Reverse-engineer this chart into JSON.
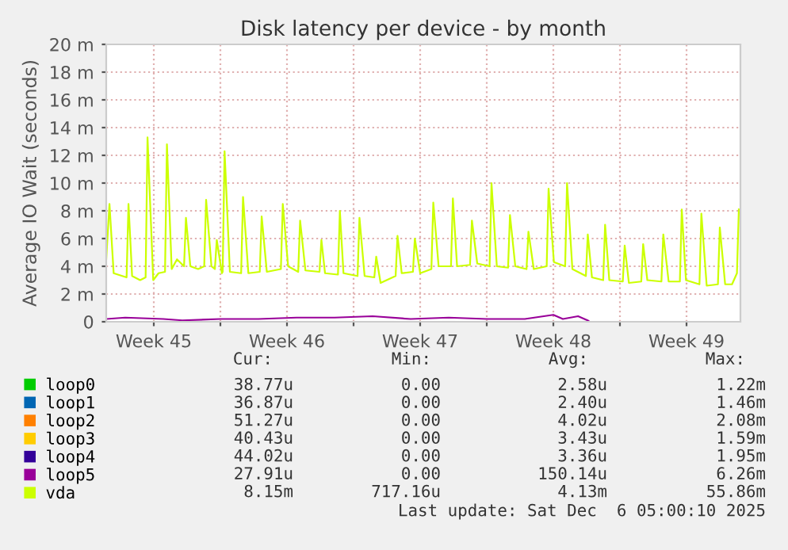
{
  "chart_data": {
    "type": "line",
    "title": "Disk latency per device - by month",
    "ylabel": "Average IO Wait (seconds)",
    "xlim": [
      "2025-11-04T00:00",
      "2025-12-07T08:00"
    ],
    "ylim": [
      0,
      20
    ],
    "xticks": [
      {
        "value": "2025-11-06T12:00",
        "label": "Week 45"
      },
      {
        "value": "2025-11-10T00:00",
        "label": null
      },
      {
        "value": "2025-11-13T12:00",
        "label": "Week 46"
      },
      {
        "value": "2025-11-17T00:00",
        "label": null
      },
      {
        "value": "2025-11-20T12:00",
        "label": "Week 47"
      },
      {
        "value": "2025-11-24T00:00",
        "label": null
      },
      {
        "value": "2025-11-27T12:00",
        "label": "Week 48"
      },
      {
        "value": "2025-12-01T00:00",
        "label": null
      },
      {
        "value": "2025-12-04T12:00",
        "label": "Week 49"
      }
    ],
    "yticks": [
      0,
      {
        "value": 2,
        "label": "2 m"
      },
      {
        "value": 4,
        "label": "4 m"
      },
      {
        "value": 6,
        "label": "6 m"
      },
      {
        "value": 8,
        "label": "8 m"
      },
      {
        "value": 10,
        "label": "10 m"
      },
      {
        "value": 12,
        "label": "12 m"
      },
      {
        "value": 14,
        "label": "14 m"
      },
      {
        "value": 16,
        "label": "16 m"
      },
      {
        "value": 18,
        "label": "18 m"
      },
      {
        "value": 20,
        "label": "20 m"
      }
    ],
    "grid": true,
    "legend": "bottom left",
    "series": [
      {
        "name": "loop0",
        "color": "#00cc00"
      },
      {
        "name": "loop1",
        "color": "#0066b3"
      },
      {
        "name": "loop2",
        "color": "#ff8000"
      },
      {
        "name": "loop3",
        "color": "#ffcc00"
      },
      {
        "name": "loop4",
        "color": "#330099"
      },
      {
        "name": "loop5",
        "color": "#990099",
        "x": [
          "2025-11-04T00:00",
          "2025-11-05T00:00",
          "2025-11-07T00:00",
          "2025-11-08T00:00",
          "2025-11-10T00:00",
          "2025-11-12T00:00",
          "2025-11-14T00:00",
          "2025-11-16T00:00",
          "2025-11-18T00:00",
          "2025-11-20T00:00",
          "2025-11-22T00:00",
          "2025-11-24T00:00",
          "2025-11-26T00:00",
          "2025-11-27T12:00",
          "2025-11-28T00:00",
          "2025-11-28T19:12",
          "2025-11-29T07:12",
          "2025-11-29T09:36",
          "2025-12-07T08:00"
        ],
        "values": [
          0.2,
          0.3,
          0.2,
          0.1,
          0.2,
          0.2,
          0.3,
          0.3,
          0.4,
          0.2,
          0.3,
          0.2,
          0.2,
          0.5,
          0.2,
          0.4,
          0.1,
          0,
          0
        ]
      },
      {
        "name": "vda",
        "color": "#ccff00",
        "x": [
          "2025-11-04T00:00",
          "2025-11-04T04:05",
          "2025-11-04T09:22",
          "2025-11-05T01:41",
          "2025-11-05T04:05",
          "2025-11-05T08:38",
          "2025-11-05T18:43",
          "2025-11-06T01:41",
          "2025-11-06T04:05",
          "2025-11-06T11:17",
          "2025-11-06T18:00",
          "2025-11-07T02:10",
          "2025-11-07T04:34",
          "2025-11-07T10:34",
          "2025-11-07T17:17",
          "2025-11-08T02:10",
          "2025-11-08T04:34",
          "2025-11-08T10:05",
          "2025-11-08T19:55",
          "2025-11-09T03:36",
          "2025-11-09T06:00",
          "2025-11-09T12:43",
          "2025-11-09T17:02",
          "2025-11-09T19:26",
          "2025-11-10T01:55",
          "2025-11-10T02:53",
          "2025-11-10T05:17",
          "2025-11-10T12:00",
          "2025-11-11T02:10",
          "2025-11-11T04:34",
          "2025-11-11T11:17",
          "2025-11-12T01:41",
          "2025-11-12T04:05",
          "2025-11-12T10:34",
          "2025-11-13T04:19",
          "2025-11-13T06:43",
          "2025-11-13T13:26",
          "2025-11-14T02:10",
          "2025-11-14T04:34",
          "2025-11-14T11:17",
          "2025-11-15T05:02",
          "2025-11-15T07:26",
          "2025-11-15T12:00",
          "2025-11-16T04:19",
          "2025-11-16T06:43",
          "2025-11-16T11:17",
          "2025-11-17T05:02",
          "2025-11-17T07:26",
          "2025-11-17T13:55",
          "2025-11-18T02:10",
          "2025-11-18T04:34",
          "2025-11-18T10:05",
          "2025-11-19T05:02",
          "2025-11-19T07:26",
          "2025-11-19T12:43",
          "2025-11-20T02:53",
          "2025-11-20T05:17",
          "2025-11-20T12:00",
          "2025-11-21T02:10",
          "2025-11-21T04:34",
          "2025-11-21T11:17",
          "2025-11-22T02:53",
          "2025-11-22T05:17",
          "2025-11-22T10:34",
          "2025-11-23T02:53",
          "2025-11-23T05:17",
          "2025-11-23T12:00",
          "2025-11-24T03:36",
          "2025-11-24T06:00",
          "2025-11-24T12:43",
          "2025-11-25T02:53",
          "2025-11-25T05:17",
          "2025-11-25T12:00",
          "2025-11-26T02:10",
          "2025-11-26T04:34",
          "2025-11-26T11:17",
          "2025-11-27T03:36",
          "2025-11-27T06:00",
          "2025-11-27T12:43",
          "2025-11-28T02:53",
          "2025-11-28T05:17",
          "2025-11-28T12:00",
          "2025-11-29T05:02",
          "2025-11-29T07:26",
          "2025-11-29T12:43",
          "2025-11-30T02:53",
          "2025-11-30T05:17",
          "2025-11-30T10:34",
          "2025-12-01T03:36",
          "2025-12-01T06:00",
          "2025-12-01T11:17",
          "2025-12-02T02:53",
          "2025-12-02T05:17",
          "2025-12-02T10:34",
          "2025-12-03T04:19",
          "2025-12-03T06:43",
          "2025-12-03T13:26",
          "2025-12-04T03:36",
          "2025-12-04T06:00",
          "2025-12-04T11:17",
          "2025-12-05T04:19",
          "2025-12-05T06:43",
          "2025-12-05T13:26",
          "2025-12-06T03:36",
          "2025-12-06T06:00",
          "2025-12-06T12:43",
          "2025-12-06T21:22",
          "2025-12-07T03:36",
          "2025-12-07T06:00"
        ],
        "values": [
          4.5,
          8.5,
          3.5,
          3.2,
          8.5,
          3.3,
          3.0,
          3.2,
          13.3,
          3.0,
          3.5,
          3.6,
          12.8,
          3.8,
          4.5,
          4.0,
          7.5,
          4.0,
          3.8,
          4.0,
          8.8,
          4.0,
          3.8,
          5.9,
          3.5,
          3.6,
          12.3,
          3.6,
          3.5,
          9.0,
          3.5,
          3.6,
          7.6,
          3.6,
          3.8,
          8.5,
          4.0,
          3.6,
          7.3,
          3.7,
          3.6,
          5.9,
          3.5,
          3.4,
          8.0,
          3.5,
          3.3,
          7.5,
          3.3,
          3.2,
          4.7,
          2.8,
          3.3,
          6.2,
          3.5,
          3.6,
          6.0,
          3.5,
          3.8,
          8.6,
          4.0,
          4.0,
          8.9,
          4.0,
          4.1,
          7.3,
          4.2,
          4.0,
          10.0,
          4.0,
          3.9,
          7.7,
          4.0,
          3.8,
          6.5,
          3.8,
          4.0,
          9.6,
          4.3,
          4.0,
          10.0,
          3.8,
          3.3,
          6.3,
          3.2,
          3.0,
          7.0,
          3.0,
          2.9,
          5.5,
          2.8,
          2.9,
          5.6,
          3.0,
          2.9,
          6.3,
          2.9,
          2.9,
          8.1,
          3.0,
          2.7,
          7.8,
          2.6,
          2.7,
          6.8,
          2.7,
          2.7,
          3.5,
          8.1
        ]
      }
    ],
    "annotations": [
      "Cur:",
      "Min:",
      "Avg:",
      "Max:",
      "38.77u",
      "0.00",
      "2.58u",
      "1.22m",
      "36.87u",
      "0.00",
      "2.40u",
      "1.46m",
      "51.27u",
      "0.00",
      "4.02u",
      "2.08m",
      "40.43u",
      "0.00",
      "3.43u",
      "1.59m",
      "44.02u",
      "0.00",
      "3.36u",
      "1.95m",
      "27.91u",
      "0.00",
      "150.14u",
      "6.26m",
      "8.15m",
      "717.16u",
      "4.13m",
      "55.86m",
      "Last update: Sat Dec  6 05:00:10 2025"
    ]
  }
}
